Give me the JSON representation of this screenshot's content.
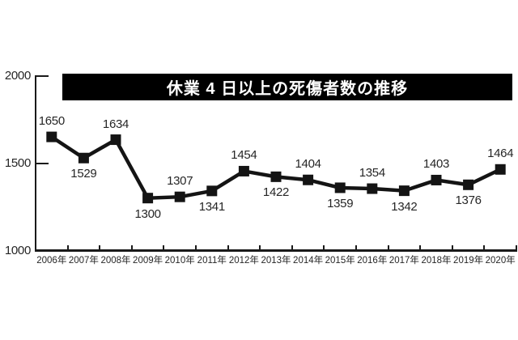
{
  "page": {
    "background_color": "#ffffff"
  },
  "chart_data": {
    "type": "line",
    "title": "休業 4 日以上の死傷者数の推移",
    "categories": [
      "2006年",
      "2007年",
      "2008年",
      "2009年",
      "2010年",
      "2011年",
      "2012年",
      "2013年",
      "2014年",
      "2015年",
      "2016年",
      "2017年",
      "2018年",
      "2019年",
      "2020年"
    ],
    "values": [
      1650,
      1529,
      1634,
      1300,
      1307,
      1341,
      1454,
      1422,
      1404,
      1359,
      1354,
      1342,
      1403,
      1376,
      1464
    ],
    "xlabel": "",
    "ylabel": "",
    "yticks": [
      2000,
      1500,
      1000
    ],
    "ylim": [
      1000,
      2000
    ],
    "grid": false,
    "legend": false,
    "marker": "square",
    "data_labels": true,
    "data_label_placement": "alternating above/below, starting above at 2006",
    "colors": {
      "line": "#141414",
      "marker": "#141414",
      "axis": "#1a1a1a",
      "text": "#262626",
      "title_background": "#000000",
      "title_text": "#ffffff"
    }
  }
}
